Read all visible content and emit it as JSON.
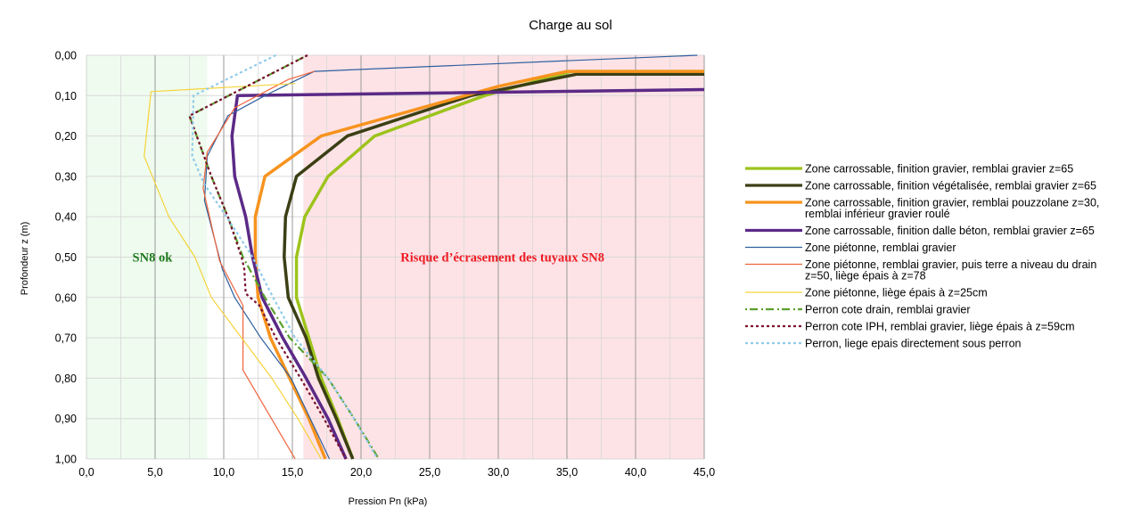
{
  "chart_data": {
    "type": "line",
    "title": "Charge au sol",
    "xlabel": "Pression Pn (kPa)",
    "ylabel": "Profondeur z (m)",
    "xlim": [
      0,
      45
    ],
    "ylim": [
      0,
      1
    ],
    "y_inverted": true,
    "grid": true,
    "legend_position": "right",
    "x_ticks": [
      "0,0",
      "5,0",
      "10,0",
      "15,0",
      "20,0",
      "25,0",
      "30,0",
      "35,0",
      "40,0",
      "45,0"
    ],
    "x_tick_values": [
      0,
      5,
      10,
      15,
      20,
      25,
      30,
      35,
      40,
      45
    ],
    "y_ticks": [
      "0,00",
      "0,10",
      "0,20",
      "0,30",
      "0,40",
      "0,50",
      "0,60",
      "0,70",
      "0,80",
      "0,90",
      "1,00"
    ],
    "y_tick_values": [
      0,
      0.1,
      0.2,
      0.3,
      0.4,
      0.5,
      0.6,
      0.7,
      0.8,
      0.9,
      1.0
    ],
    "zones": [
      {
        "label": "SN8 ok",
        "x_range": [
          0,
          8.8
        ],
        "fill": "#effbef",
        "text_color": "#1e7a1e",
        "label_x": 4.8,
        "label_y": 0.5
      },
      {
        "label": "Risque d’écrasement des tuyaux SN8",
        "x_range": [
          15.8,
          45
        ],
        "fill": "#fde3e6",
        "text_color": "#ee1c24",
        "label_x": 30.3,
        "label_y": 0.5
      }
    ],
    "series": [
      {
        "name": "Zone carrossable, finition gravier, remblai gravier z=65",
        "name2": "",
        "color": "#9dc31c",
        "width": 3.5,
        "dash": "",
        "points": [
          [
            45,
            0.04
          ],
          [
            35.3,
            0.04
          ],
          [
            29,
            0.1
          ],
          [
            21,
            0.2
          ],
          [
            17.6,
            0.3
          ],
          [
            15.9,
            0.4
          ],
          [
            15.3,
            0.5
          ],
          [
            15.3,
            0.6
          ],
          [
            16.2,
            0.7
          ],
          [
            17.1,
            0.8
          ],
          [
            18.3,
            0.9
          ],
          [
            19.4,
            1.0
          ]
        ]
      },
      {
        "name": "Zone carrossable, finition végétalisée, remblai gravier z=65",
        "name2": "",
        "color": "#3b3f14",
        "width": 3.5,
        "dash": "",
        "points": [
          [
            45,
            0.047
          ],
          [
            35.7,
            0.047
          ],
          [
            28,
            0.1
          ],
          [
            19,
            0.2
          ],
          [
            15.3,
            0.3
          ],
          [
            14.5,
            0.4
          ],
          [
            14.4,
            0.5
          ],
          [
            14.7,
            0.6
          ],
          [
            16,
            0.7
          ],
          [
            16.9,
            0.8
          ],
          [
            18.2,
            0.9
          ],
          [
            19.4,
            1.0
          ]
        ]
      },
      {
        "name": "Zone carrossable, finition gravier, remblai pouzzolane z=30,",
        "name2": "remblai inférieur gravier roulé",
        "color": "#f7931e",
        "width": 3.5,
        "dash": "",
        "points": [
          [
            45,
            0.04
          ],
          [
            35,
            0.04
          ],
          [
            30,
            0.077
          ],
          [
            17.1,
            0.2
          ],
          [
            13,
            0.3
          ],
          [
            12.3,
            0.4
          ],
          [
            12.3,
            0.5
          ],
          [
            12.5,
            0.6
          ],
          [
            13.4,
            0.7
          ],
          [
            14.8,
            0.8
          ],
          [
            16.2,
            0.9
          ],
          [
            17.4,
            1.0
          ]
        ]
      },
      {
        "name": "Zone carrossable, finition dalle béton, remblai gravier z=65",
        "name2": "",
        "color": "#5b2a86",
        "width": 3.5,
        "dash": "",
        "points": [
          [
            45,
            0.085
          ],
          [
            11,
            0.1
          ],
          [
            10.6,
            0.2
          ],
          [
            10.8,
            0.3
          ],
          [
            11.6,
            0.4
          ],
          [
            12.1,
            0.5
          ],
          [
            12.8,
            0.6
          ],
          [
            14.3,
            0.7
          ],
          [
            16,
            0.8
          ],
          [
            17.6,
            0.9
          ],
          [
            18.9,
            1.0
          ]
        ]
      },
      {
        "name": "Zone piétonne, remblai gravier",
        "name2": "",
        "color": "#2e5f9e",
        "width": 1.2,
        "dash": "",
        "points": [
          [
            44.5,
            0.0
          ],
          [
            16.6,
            0.04
          ],
          [
            13,
            0.1
          ],
          [
            10.3,
            0.15
          ],
          [
            8.8,
            0.25
          ],
          [
            8.6,
            0.36
          ],
          [
            9.9,
            0.53
          ],
          [
            10.8,
            0.6
          ],
          [
            12.7,
            0.7
          ],
          [
            14.9,
            0.8
          ],
          [
            16.3,
            0.9
          ],
          [
            17.7,
            1.0
          ]
        ]
      },
      {
        "name": "Zone piétonne, remblai gravier, puis terre a niveau du drain",
        "name2": "z=50, liège épais à z=78",
        "color": "#f0643c",
        "width": 1.2,
        "dash": "",
        "points": [
          [
            16.6,
            0.04
          ],
          [
            14.7,
            0.06
          ],
          [
            10.8,
            0.13
          ],
          [
            8.8,
            0.24
          ],
          [
            8.5,
            0.33
          ],
          [
            9.7,
            0.51
          ],
          [
            11.4,
            0.62
          ],
          [
            11.4,
            0.78
          ],
          [
            15.2,
            1.0
          ]
        ]
      },
      {
        "name": "Zone piétonne, liège épais à z=25cm",
        "name2": "",
        "color": "#f5d33a",
        "width": 1.2,
        "dash": "",
        "points": [
          [
            15.2,
            0.07
          ],
          [
            4.7,
            0.09
          ],
          [
            4.2,
            0.25
          ],
          [
            6,
            0.4
          ],
          [
            7.9,
            0.5
          ],
          [
            9.1,
            0.6
          ],
          [
            11.3,
            0.7
          ],
          [
            13.5,
            0.8
          ],
          [
            15.4,
            0.9
          ],
          [
            17.1,
            1.0
          ]
        ]
      },
      {
        "name": "Perron cote drain, remblai gravier",
        "name2": "",
        "color": "#5aa02c",
        "width": 2.2,
        "dash": "2 3 9 4",
        "points": [
          [
            16.1,
            0.0
          ],
          [
            7.5,
            0.15
          ],
          [
            9.1,
            0.3
          ],
          [
            10.3,
            0.4
          ],
          [
            11.4,
            0.5
          ],
          [
            13,
            0.6
          ],
          [
            14.8,
            0.7
          ],
          [
            17.6,
            0.8
          ],
          [
            19.5,
            0.9
          ],
          [
            21.3,
            1.0
          ]
        ]
      },
      {
        "name": "Perron cote IPH, remblai gravier, liège épais à z=59cm",
        "name2": "",
        "color": "#7a0f2e",
        "width": 2.2,
        "dash": "3 3",
        "points": [
          [
            16.1,
            0.0
          ],
          [
            7.5,
            0.15
          ],
          [
            9.1,
            0.3
          ],
          [
            10.3,
            0.4
          ],
          [
            11.3,
            0.5
          ],
          [
            11.5,
            0.53
          ],
          [
            11.6,
            0.59
          ],
          [
            12.6,
            0.62
          ],
          [
            13.8,
            0.7
          ],
          [
            15.6,
            0.8
          ],
          [
            17.3,
            0.9
          ],
          [
            18.9,
            1.0
          ]
        ]
      },
      {
        "name": "Perron, liege epais directement sous perron",
        "name2": "",
        "color": "#8fcbea",
        "width": 2.2,
        "dash": "3 3",
        "points": [
          [
            13.8,
            0.0
          ],
          [
            7.8,
            0.1
          ],
          [
            7.7,
            0.25
          ],
          [
            8.6,
            0.32
          ],
          [
            10.2,
            0.4
          ],
          [
            12.1,
            0.5
          ],
          [
            13.6,
            0.6
          ],
          [
            15.2,
            0.7
          ],
          [
            17.6,
            0.8
          ],
          [
            19.5,
            0.9
          ],
          [
            21.2,
            1.0
          ]
        ]
      }
    ]
  }
}
